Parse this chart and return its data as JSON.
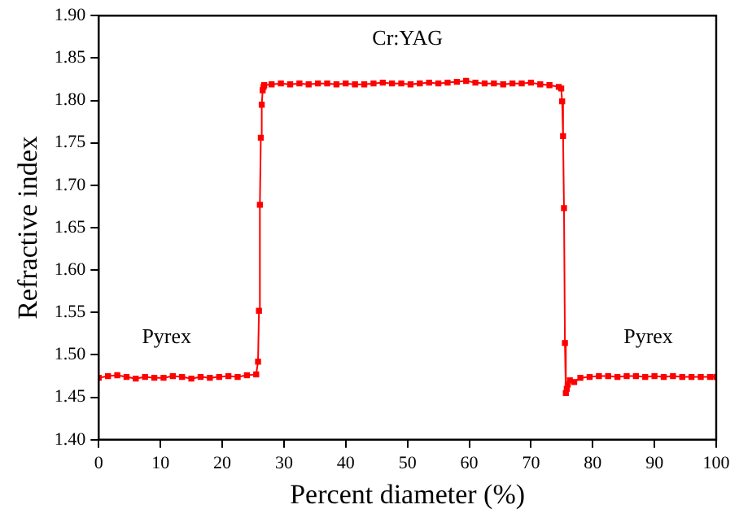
{
  "chart_data": {
    "type": "line",
    "xlabel": "Percent diameter (%)",
    "ylabel": "Refractive index",
    "xlim": [
      0,
      100
    ],
    "xticks": [
      0,
      10,
      20,
      30,
      40,
      50,
      60,
      70,
      80,
      90,
      100
    ],
    "ylim": [
      1.4,
      1.9
    ],
    "yticks": [
      {
        "value": 1.4,
        "label": "1.40"
      },
      {
        "value": 1.45,
        "label": "1.45"
      },
      {
        "value": 1.5,
        "label": "1.50"
      },
      {
        "value": 1.55,
        "label": "1.55"
      },
      {
        "value": 1.6,
        "label": "1.60"
      },
      {
        "value": 1.65,
        "label": "1.65"
      },
      {
        "value": 1.7,
        "label": "1.70"
      },
      {
        "value": 1.75,
        "label": "1.75"
      },
      {
        "value": 1.8,
        "label": "1.80"
      },
      {
        "value": 1.85,
        "label": "1.85"
      },
      {
        "value": 1.9,
        "label": "1.90"
      }
    ],
    "marker": "square",
    "legend": false,
    "grid": false,
    "annotations": [
      "Pyrex",
      "Cr:YAG",
      "Pyrex"
    ],
    "series": [
      {
        "color": "#ff0000",
        "x": [
          0,
          1.5,
          3,
          4.5,
          6,
          7.5,
          9,
          10.5,
          12,
          13.5,
          15,
          16.5,
          18,
          19.5,
          21,
          22.5,
          24,
          25.5,
          25.8,
          25.95,
          26.1,
          26.25,
          26.4,
          26.55,
          26.7,
          26.8,
          28,
          29.5,
          31,
          32.5,
          34,
          35.5,
          37,
          38.5,
          40,
          41.5,
          43,
          44.5,
          46,
          47.5,
          49,
          50.5,
          52,
          53.5,
          55,
          56.5,
          58,
          59.5,
          61,
          62.5,
          64,
          65.5,
          67,
          68.5,
          70,
          71.5,
          73,
          74.5,
          74.9,
          75.05,
          75.2,
          75.35,
          75.5,
          75.65,
          75.8,
          75.95,
          76.3,
          77,
          78,
          79.5,
          81,
          82.5,
          84,
          85.5,
          87,
          88.5,
          90,
          91.5,
          93,
          94.5,
          96,
          97.5,
          99,
          100
        ],
        "values": [
          1.473,
          1.475,
          1.476,
          1.474,
          1.472,
          1.474,
          1.473,
          1.473,
          1.475,
          1.474,
          1.472,
          1.474,
          1.473,
          1.474,
          1.475,
          1.474,
          1.476,
          1.477,
          1.492,
          1.552,
          1.677,
          1.756,
          1.795,
          1.812,
          1.816,
          1.818,
          1.819,
          1.82,
          1.819,
          1.82,
          1.819,
          1.82,
          1.82,
          1.819,
          1.82,
          1.819,
          1.819,
          1.82,
          1.821,
          1.82,
          1.82,
          1.819,
          1.82,
          1.821,
          1.82,
          1.821,
          1.822,
          1.823,
          1.821,
          1.82,
          1.82,
          1.819,
          1.82,
          1.82,
          1.821,
          1.819,
          1.818,
          1.816,
          1.814,
          1.799,
          1.758,
          1.673,
          1.514,
          1.455,
          1.46,
          1.465,
          1.47,
          1.468,
          1.473,
          1.474,
          1.475,
          1.475,
          1.474,
          1.475,
          1.475,
          1.474,
          1.475,
          1.474,
          1.475,
          1.474,
          1.474,
          1.474,
          1.474,
          1.474
        ]
      }
    ]
  }
}
